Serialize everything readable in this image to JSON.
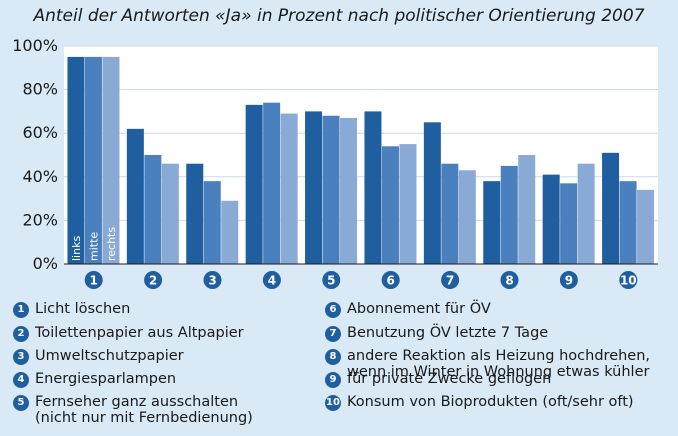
{
  "chart_data": {
    "type": "bar",
    "title": "Anteil der Antworten «Ja» in Prozent nach politischer Orientierung 2007",
    "categories": [
      "1",
      "2",
      "3",
      "4",
      "5",
      "6",
      "7",
      "8",
      "9",
      "10"
    ],
    "series": [
      {
        "name": "links",
        "color": "#1f5fa0",
        "values": [
          95,
          62,
          46,
          73,
          70,
          70,
          65,
          38,
          41,
          51
        ]
      },
      {
        "name": "mitte",
        "color": "#4a80bd",
        "values": [
          95,
          50,
          38,
          74,
          68,
          54,
          46,
          45,
          37,
          38
        ]
      },
      {
        "name": "rechts",
        "color": "#8aaad6",
        "values": [
          95,
          46,
          29,
          69,
          67,
          55,
          43,
          50,
          46,
          34
        ]
      }
    ],
    "yticks": [
      "0%",
      "20%",
      "40%",
      "60%",
      "80%",
      "100%"
    ],
    "ylim": [
      0,
      100
    ],
    "xlabel": "",
    "ylabel": "",
    "grid": true,
    "legend": [
      {
        "num": "1",
        "text": "Licht löschen"
      },
      {
        "num": "2",
        "text": "Toilettenpapier aus Altpapier"
      },
      {
        "num": "3",
        "text": "Umweltschutzpapier"
      },
      {
        "num": "4",
        "text": "Energiesparlampen"
      },
      {
        "num": "5",
        "text": "Fernseher ganz ausschalten\n(nicht nur mit Fernbedienung)"
      },
      {
        "num": "6",
        "text": "Abonnement für ÖV"
      },
      {
        "num": "7",
        "text": "Benutzung ÖV letzte 7 Tage"
      },
      {
        "num": "8",
        "text": "andere Reaktion als Heizung hochdrehen,\nwenn im Winter in Wohnung etwas kühler"
      },
      {
        "num": "9",
        "text": "für private Zwecke geflogen"
      },
      {
        "num": "10",
        "text": "Konsum von Bioprodukten (oft/sehr oft)"
      }
    ],
    "colors": {
      "background": "#d9e9f5",
      "plot": "#ffffff",
      "grid": "#c9dcec",
      "circle": "#1f5fa0"
    }
  }
}
